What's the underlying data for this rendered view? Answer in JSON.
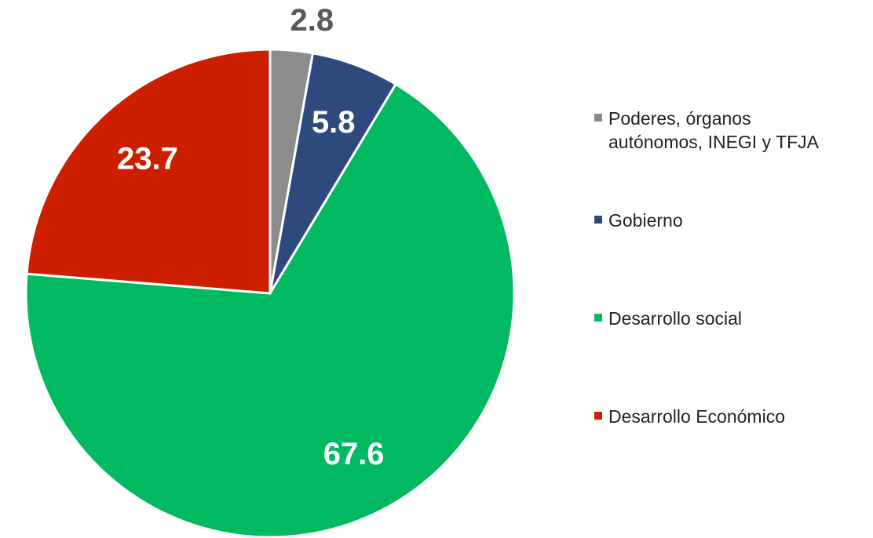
{
  "chart_data": {
    "type": "pie",
    "categories": [
      "Poderes, órganos autónomos, INEGI y TFJA",
      "Gobierno",
      "Desarrollo social",
      "Desarrollo Económico"
    ],
    "values": [
      2.8,
      5.8,
      67.6,
      23.7
    ],
    "colors": [
      "#8c8c8c",
      "#2e4a7d",
      "#00b960",
      "#cc1f00"
    ],
    "legend": "right"
  }
}
